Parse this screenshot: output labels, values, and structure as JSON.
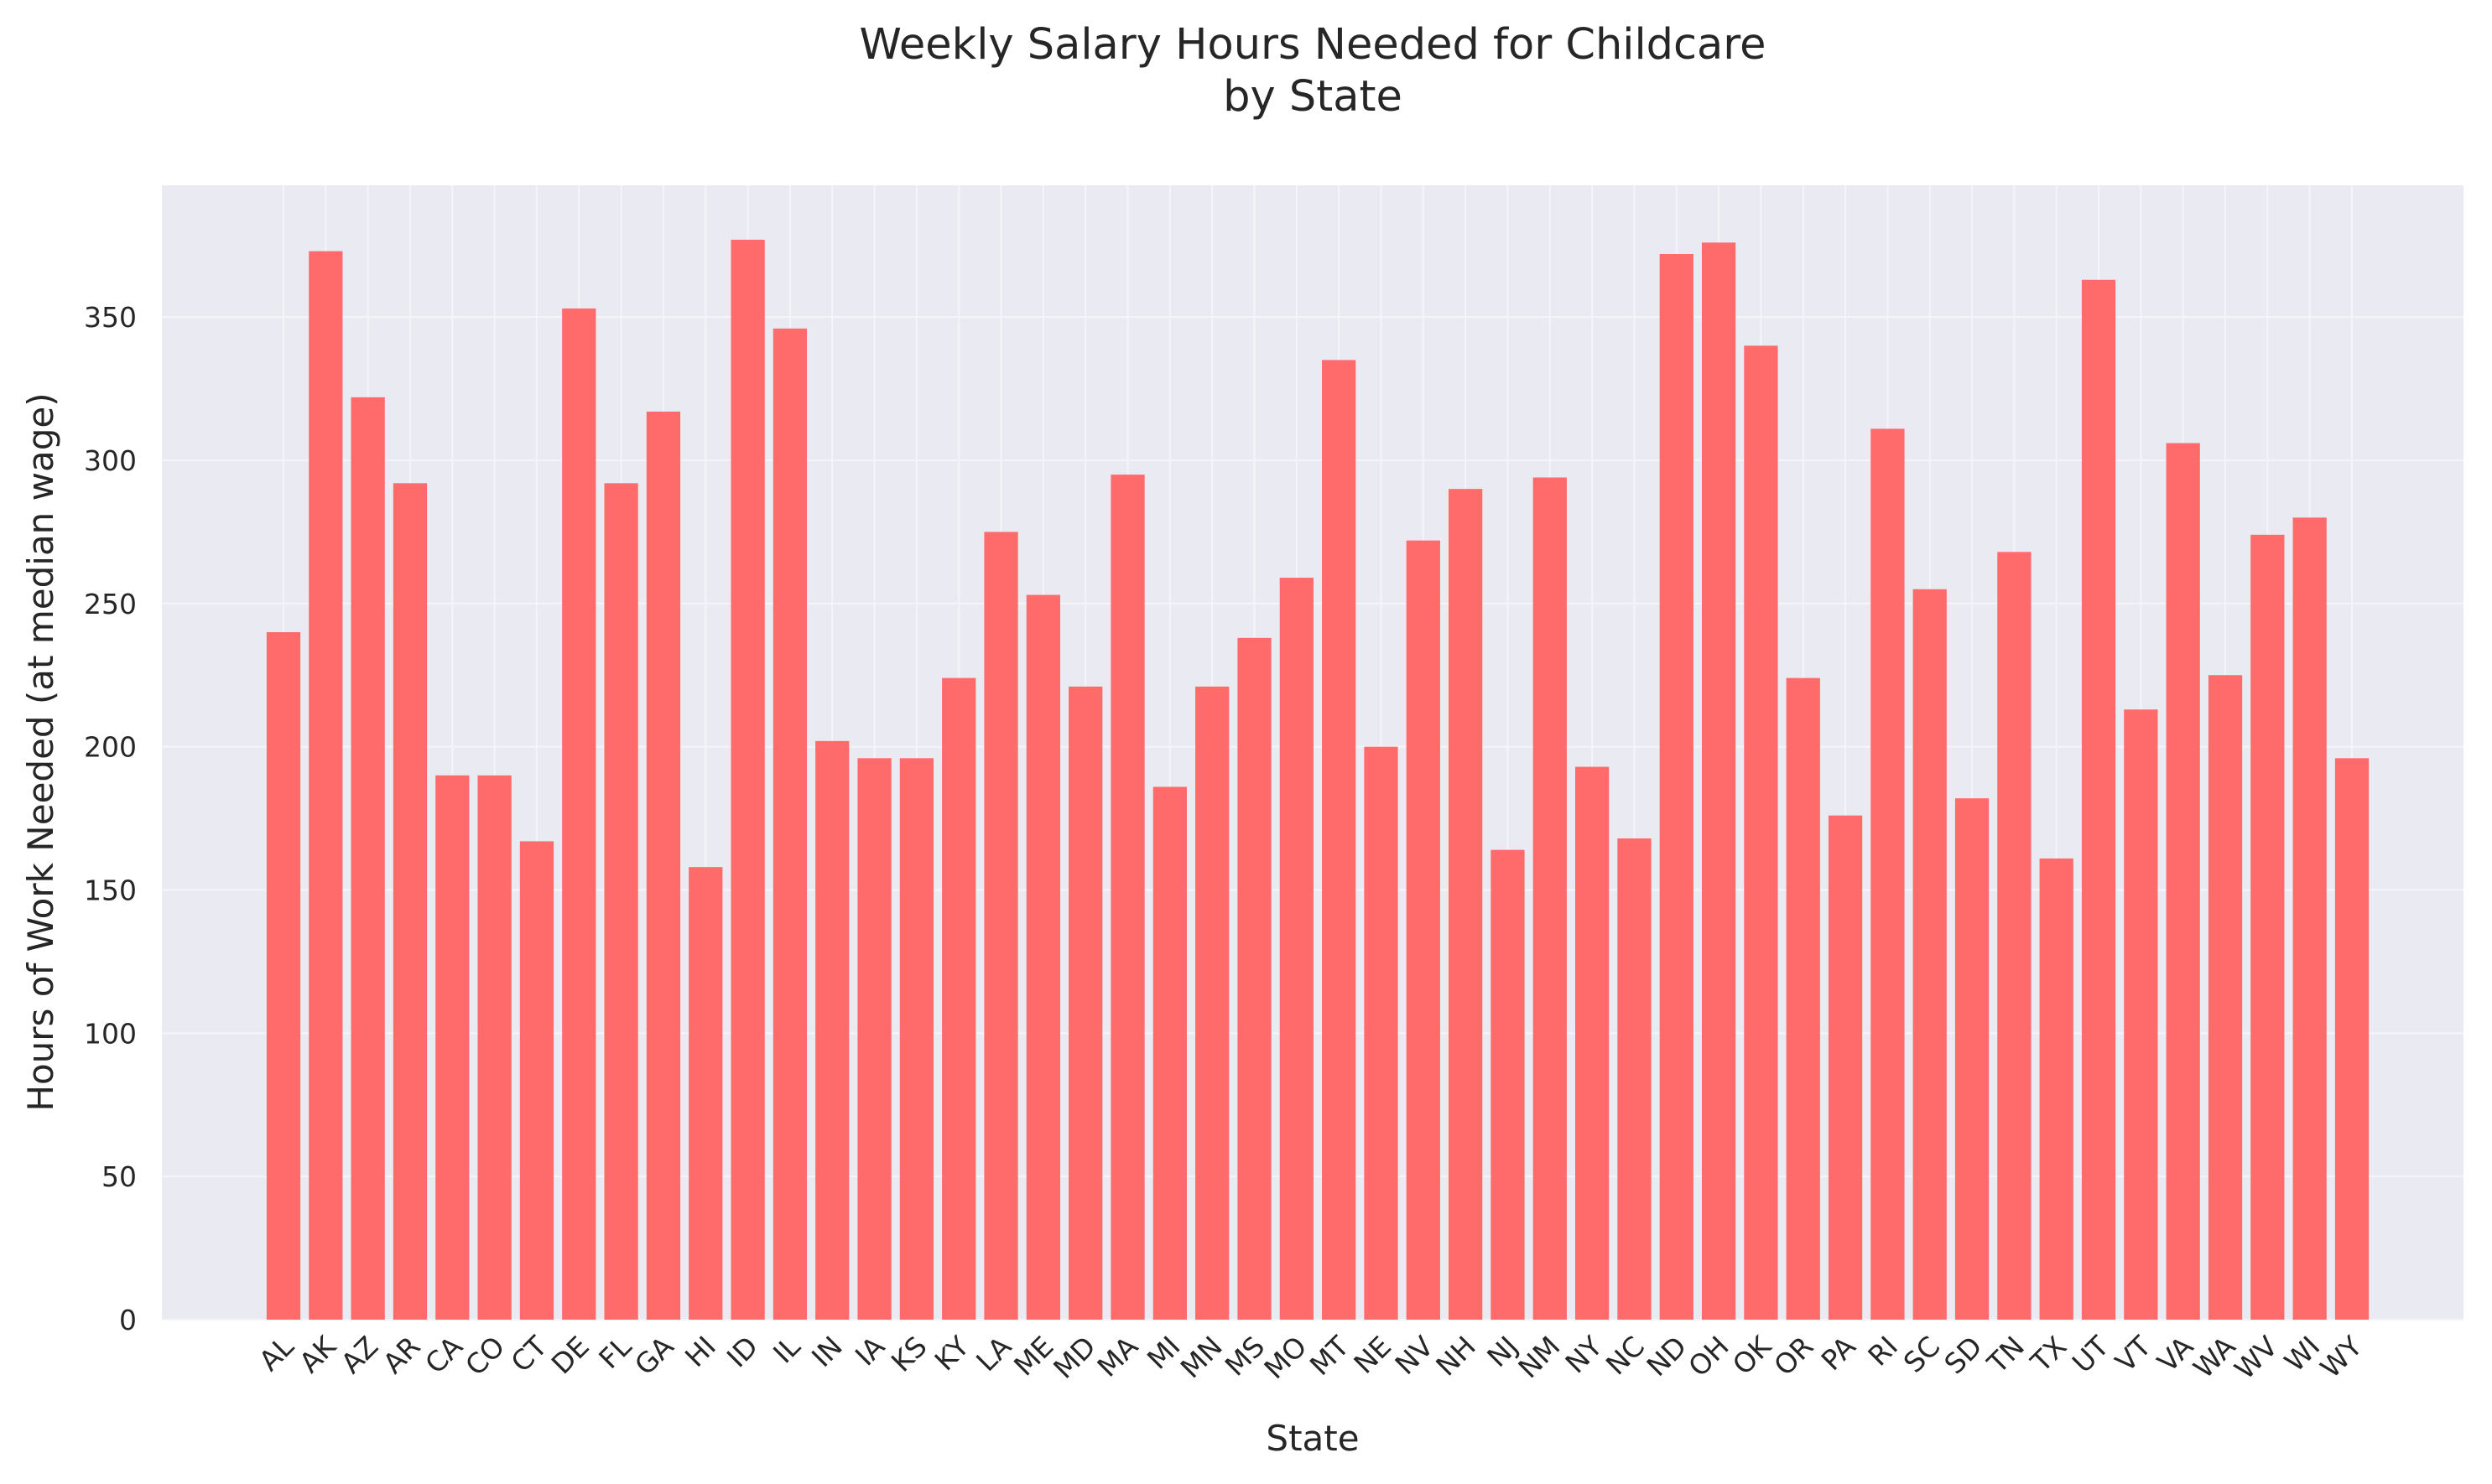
{
  "chart_data": {
    "type": "bar",
    "title": "Weekly Salary Hours Needed for Childcare",
    "subtitle": "by State",
    "xlabel": "State",
    "ylabel": "Hours of Work Needed (at median wage)",
    "ylim": [
      0,
      396
    ],
    "yticks": [
      0,
      50,
      100,
      150,
      200,
      250,
      300,
      350
    ],
    "ytick_labels": [
      "0",
      "50",
      "100",
      "150",
      "200",
      "250",
      "300",
      "350"
    ],
    "grid": true,
    "bar_color": "#ff6b6b",
    "background_color": "#eaeaf2",
    "categories": [
      "AL",
      "AK",
      "AZ",
      "AR",
      "CA",
      "CO",
      "CT",
      "DE",
      "FL",
      "GA",
      "HI",
      "ID",
      "IL",
      "IN",
      "IA",
      "KS",
      "KY",
      "LA",
      "ME",
      "MD",
      "MA",
      "MI",
      "MN",
      "MS",
      "MO",
      "MT",
      "NE",
      "NV",
      "NH",
      "NJ",
      "NM",
      "NY",
      "NC",
      "ND",
      "OH",
      "OK",
      "OR",
      "PA",
      "RI",
      "SC",
      "SD",
      "TN",
      "TX",
      "UT",
      "VT",
      "VA",
      "WA",
      "WV",
      "WI",
      "WY"
    ],
    "values": [
      240,
      373,
      322,
      292,
      190,
      190,
      167,
      353,
      292,
      317,
      158,
      377,
      346,
      202,
      196,
      196,
      224,
      275,
      253,
      221,
      295,
      186,
      221,
      238,
      259,
      335,
      200,
      272,
      290,
      164,
      294,
      193,
      168,
      372,
      376,
      340,
      224,
      176,
      311,
      255,
      182,
      268,
      161,
      363,
      213,
      306,
      225,
      274,
      280,
      196
    ]
  }
}
